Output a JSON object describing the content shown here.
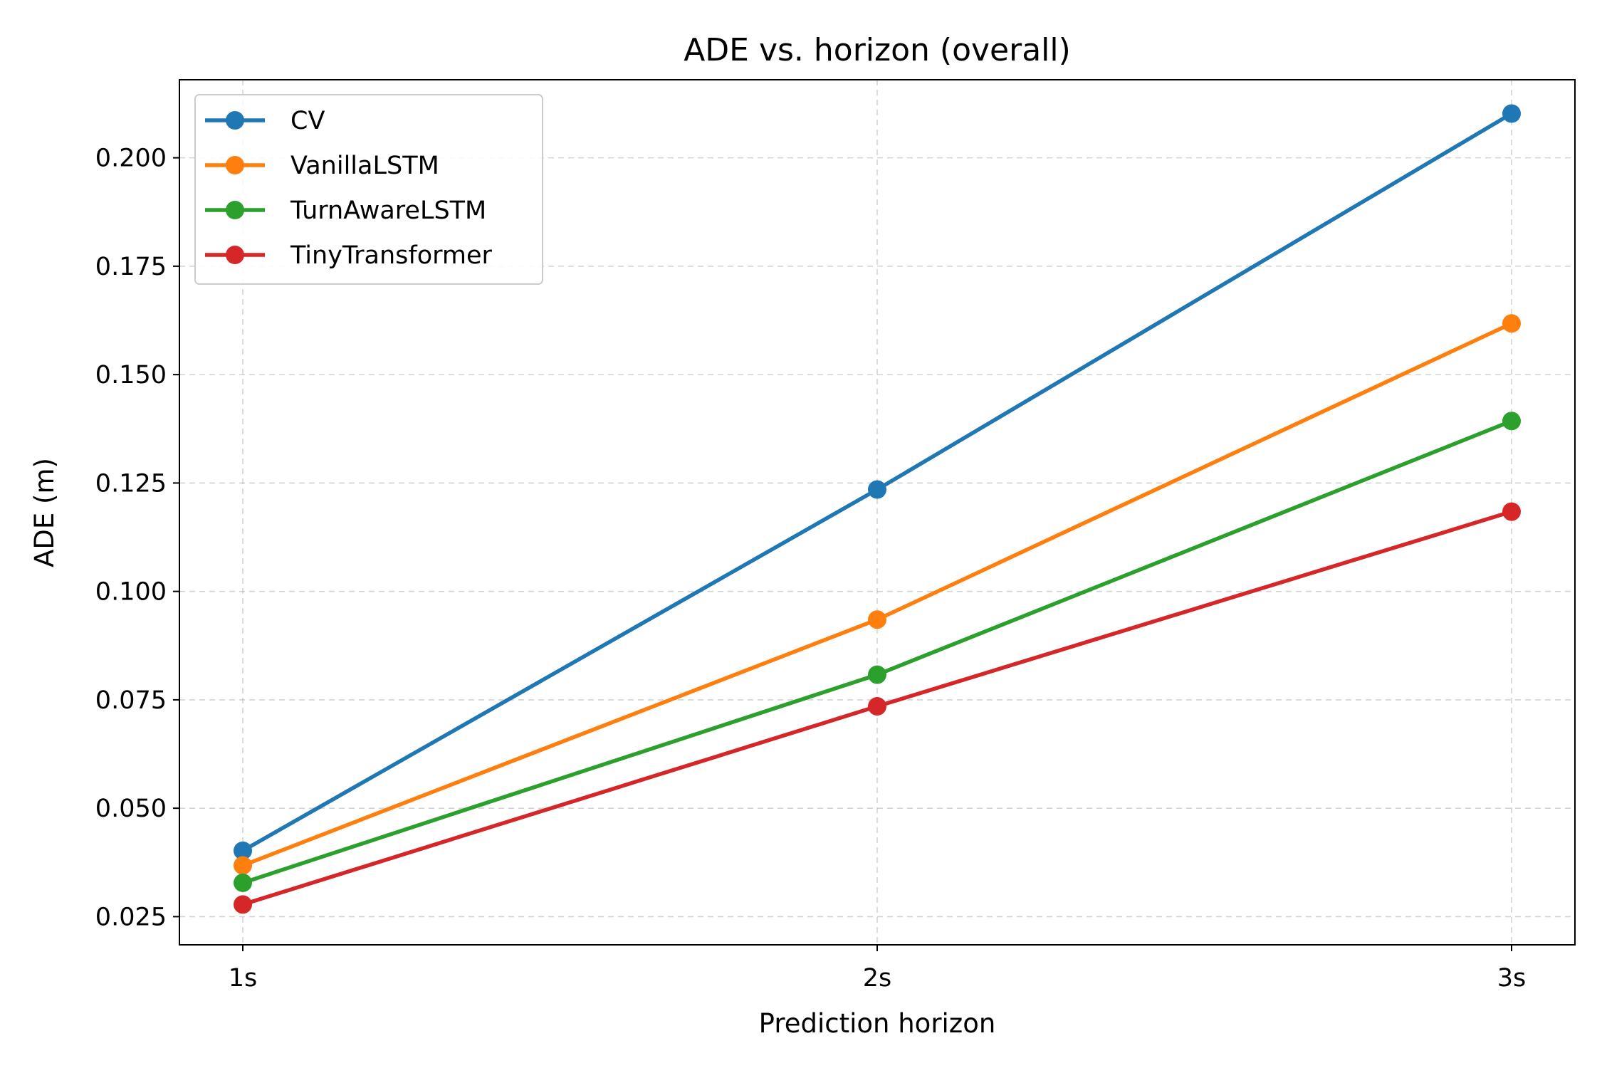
{
  "chart_data": {
    "type": "line",
    "title": "ADE vs. horizon (overall)",
    "xlabel": "Prediction horizon",
    "ylabel": "ADE (m)",
    "categories": [
      "1s",
      "2s",
      "3s"
    ],
    "ylim": [
      0.0185,
      0.218
    ],
    "yticks": [
      0.025,
      0.05,
      0.075,
      0.1,
      0.125,
      0.15,
      0.175,
      0.2
    ],
    "ytick_labels": [
      "0.025",
      "0.050",
      "0.075",
      "0.100",
      "0.125",
      "0.150",
      "0.175",
      "0.200"
    ],
    "grid": true,
    "legend_position": "top-left",
    "series": [
      {
        "name": "CV",
        "color": "#1f77b4",
        "values": [
          0.0402,
          0.1235,
          0.2102
        ]
      },
      {
        "name": "VanillaLSTM",
        "color": "#ff7f0e",
        "values": [
          0.0368,
          0.0935,
          0.1618
        ]
      },
      {
        "name": "TurnAwareLSTM",
        "color": "#2ca02c",
        "values": [
          0.0328,
          0.0808,
          0.1393
        ]
      },
      {
        "name": "TinyTransformer",
        "color": "#d62728",
        "values": [
          0.0278,
          0.0735,
          0.1184
        ]
      }
    ]
  }
}
